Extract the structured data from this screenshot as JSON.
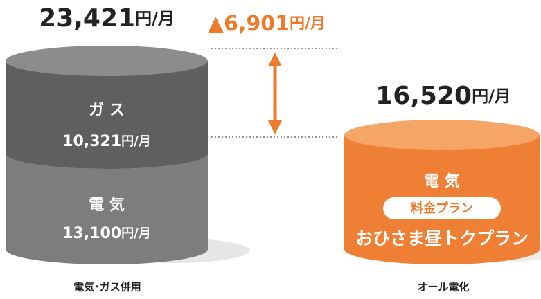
{
  "left": {
    "total": {
      "amount": "23,421",
      "unit": "円/月"
    },
    "gas": {
      "label": "ガ ス",
      "amount": "10,321",
      "unit": "円/月"
    },
    "electric": {
      "label": "電 気",
      "amount": "13,100",
      "unit": "円/月"
    },
    "caption": "電気･ガス併用"
  },
  "difference": {
    "mark": "▲",
    "amount": "6,901",
    "unit": "円/月"
  },
  "right": {
    "total": {
      "amount": "16,520",
      "unit": "円/月"
    },
    "electric": {
      "label": "電 気",
      "badge": "料金プラン",
      "plan": "おひさま昼トクプラン"
    },
    "caption": "オール電化"
  }
}
